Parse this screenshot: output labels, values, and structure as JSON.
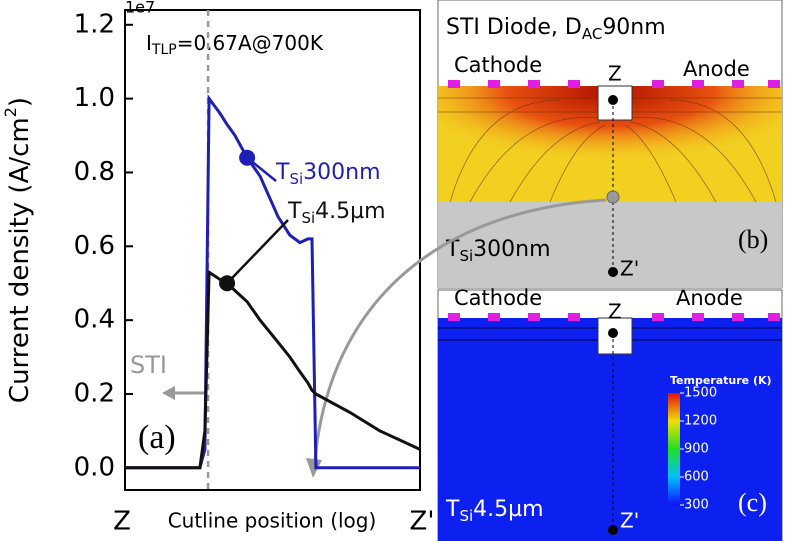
{
  "chart_data": {
    "type": "line",
    "y_label": [
      "Current density (A/cm",
      "2",
      ")"
    ],
    "y_offset_label": "1e7",
    "x_label": "Cutline position (log)",
    "x_start_label": "Z",
    "x_end_label": "Z'",
    "panel_label": "(a)",
    "annotations": {
      "condition": [
        "I",
        "TLP",
        "=0.67A@700K"
      ],
      "sti": "STI"
    },
    "x": [
      0,
      25.4,
      27.1,
      28.5,
      32.2,
      34.6,
      37.3,
      41.4,
      45.8,
      51.9,
      55.9,
      59.3,
      62.0,
      63.4,
      64.7,
      76.3,
      86.4,
      100
    ],
    "xlim": [
      0,
      100
    ],
    "ylim": [
      -0.06,
      1.24
    ],
    "yticks": [
      {
        "value": 0,
        "label": "0.0"
      },
      0.2,
      0.4,
      0.6,
      0.8,
      {
        "value": 1,
        "label": "1.0"
      },
      1.2
    ],
    "series": [
      {
        "name": [
          "T",
          "Si",
          "300nm"
        ],
        "color": "#1f1fb4",
        "marker_index": 7,
        "values": [
          0,
          0,
          0.05,
          1.0,
          0.96,
          0.93,
          0.9,
          0.84,
          0.79,
          0.68,
          0.63,
          0.61,
          0.62,
          0.62,
          0,
          0,
          0,
          0
        ]
      },
      {
        "name": [
          "T",
          "Si",
          "4.5µm"
        ],
        "color": "#111111",
        "marker_index": 5,
        "values": [
          0,
          0,
          0.1,
          0.53,
          0.51,
          0.5,
          0.48,
          0.45,
          0.4,
          0.34,
          0.3,
          0.26,
          0.23,
          0.21,
          0.2,
          0.15,
          0.1,
          0.05
        ]
      }
    ]
  },
  "panel_b": {
    "title": [
      "STI Diode, D",
      "AC",
      "90nm"
    ],
    "cathode": "Cathode",
    "anode": "Anode",
    "z": "Z",
    "z_prime": "Z'",
    "thickness": [
      "T",
      "Si",
      "300nm"
    ],
    "label": "(b)"
  },
  "panel_c": {
    "cathode": "Cathode",
    "anode": "Anode",
    "z": "Z",
    "z_prime": "Z'",
    "thickness": [
      "T",
      "Si",
      "4.5µm"
    ],
    "label": "(c)",
    "colorbar": {
      "title": "Temperature (K)",
      "ticks": [
        300,
        600,
        900,
        1200,
        1500
      ]
    }
  }
}
